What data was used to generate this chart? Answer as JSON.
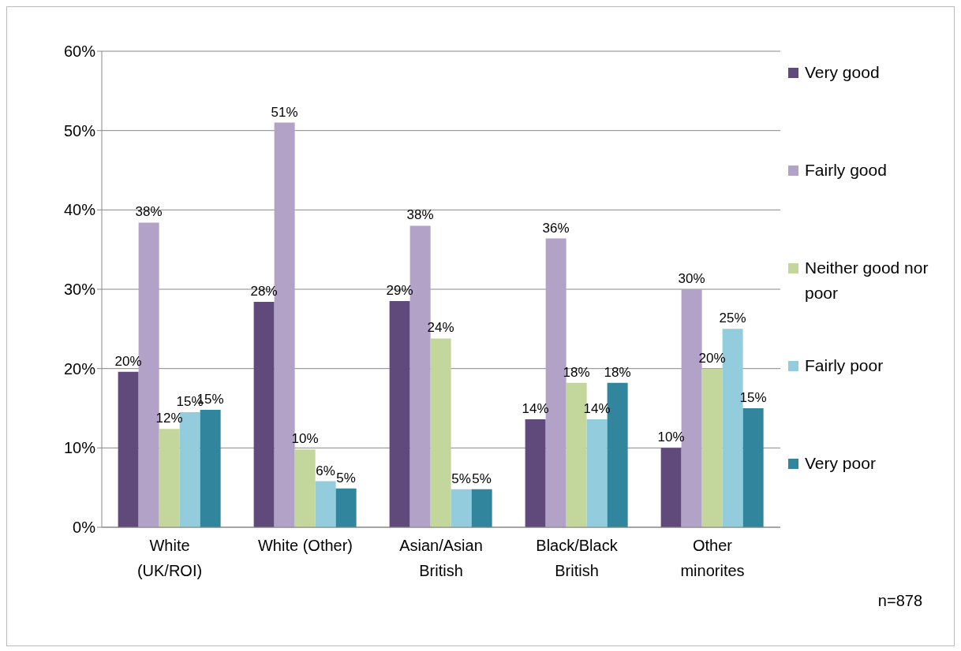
{
  "chart_data": {
    "type": "bar",
    "categories": [
      "White (UK/ROI)",
      "White (Other)",
      "Asian/Asian British",
      "Black/Black British",
      "Other minorites"
    ],
    "series": [
      {
        "name": "Very good",
        "color": "#604a7b",
        "values": [
          19.6,
          28.4,
          28.5,
          13.6,
          10
        ],
        "value_labels": [
          "20%",
          "28%",
          "29%",
          "14%",
          "10%"
        ]
      },
      {
        "name": "Fairly good",
        "color": "#b3a2c7",
        "values": [
          38.4,
          51,
          38,
          36.4,
          30
        ],
        "value_labels": [
          "38%",
          "51%",
          "38%",
          "36%",
          "30%"
        ]
      },
      {
        "name": "Neither good nor poor",
        "color": "#c3d69b",
        "values": [
          12.4,
          9.8,
          23.8,
          18.2,
          20
        ],
        "value_labels": [
          "12%",
          "10%",
          "24%",
          "18%",
          "20%"
        ]
      },
      {
        "name": "Fairly poor",
        "color": "#93cddd",
        "values": [
          14.5,
          5.8,
          4.8,
          13.6,
          25
        ],
        "value_labels": [
          "15%",
          "6%",
          "5%",
          "14%",
          "25%"
        ]
      },
      {
        "name": "Very poor",
        "color": "#31859c",
        "values": [
          14.8,
          4.9,
          4.8,
          18.2,
          15
        ],
        "value_labels": [
          "15%",
          "5%",
          "5%",
          "18%",
          "15%"
        ]
      }
    ],
    "ylim": [
      0,
      60
    ],
    "yticks": [
      {
        "value": 0,
        "label": "0%"
      },
      {
        "value": 10,
        "label": "10%"
      },
      {
        "value": 20,
        "label": "20%"
      },
      {
        "value": 30,
        "label": "30%"
      },
      {
        "value": 40,
        "label": "40%"
      },
      {
        "value": 50,
        "label": "50%"
      },
      {
        "value": 60,
        "label": "60%"
      }
    ],
    "grid": "y",
    "legend": "right",
    "annotations": [
      "n=878"
    ]
  }
}
